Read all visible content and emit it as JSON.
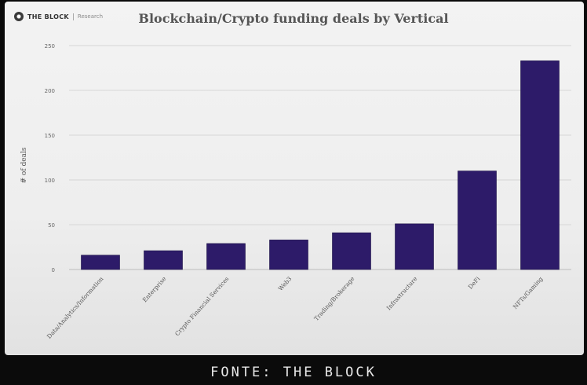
{
  "brand": {
    "name": "THE BLOCK",
    "section": "Research"
  },
  "caption": "FONTE: THE BLOCK",
  "chart_data": {
    "type": "bar",
    "title": "Blockchain/Crypto funding deals by Vertical",
    "xlabel": "",
    "ylabel": "# of deals",
    "ylim": [
      0,
      250
    ],
    "yticks": [
      0,
      50,
      100,
      150,
      200,
      250
    ],
    "grid": true,
    "bar_color": "#2d1b69",
    "categories": [
      "Data/Analytics/Information",
      "Enterprise",
      "Crypto Financial Services",
      "Web3",
      "Trading/Brokerage",
      "Infrastructure",
      "DeFi",
      "NFTs/Gaming"
    ],
    "values": [
      16,
      21,
      29,
      33,
      41,
      51,
      110,
      233
    ]
  }
}
